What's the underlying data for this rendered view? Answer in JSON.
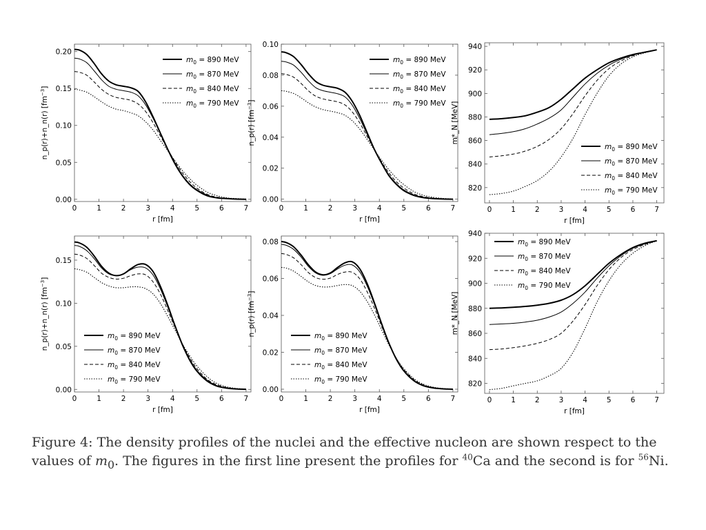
{
  "figure": {
    "caption": {
      "label": "Figure 4:",
      "text_a": "The density profiles of the nuclei and the effective nucleon are shown respect to the values of",
      "m_symbol": "m",
      "m_sub": "0",
      "text_b": ". The figures in the first line present the profiles for",
      "ca_mass": "40",
      "ca_symbol": "Ca",
      "text_c": "and the second is for",
      "ni_mass": "56",
      "ni_symbol": "Ni",
      "text_d": "."
    }
  },
  "chart_data": [
    {
      "type": "line",
      "nucleus": "40Ca",
      "ylabel": "n_p(r)+n_n(r) [fm^-3]",
      "xlabel": "r [fm]",
      "xlim": [
        0,
        7.2
      ],
      "ylim": [
        -0.003,
        0.21
      ],
      "xticks": [
        "0",
        "1",
        "2",
        "3",
        "4",
        "5",
        "6",
        "7"
      ],
      "yticks": [
        "0.00",
        "0.05",
        "0.10",
        "0.15",
        "0.20"
      ],
      "legend_position": "top-right",
      "x": [
        0,
        0.2,
        0.5,
        0.8,
        1.1,
        1.4,
        1.7,
        2.0,
        2.3,
        2.6,
        2.9,
        3.2,
        3.5,
        3.8,
        4.1,
        4.4,
        4.7,
        5.0,
        5.4,
        5.8,
        6.2,
        6.6,
        7.0
      ],
      "series": [
        {
          "name": "m0 = 890 MeV",
          "style": "thick",
          "values": [
            0.203,
            0.202,
            0.196,
            0.184,
            0.17,
            0.16,
            0.155,
            0.153,
            0.151,
            0.146,
            0.132,
            0.112,
            0.09,
            0.068,
            0.048,
            0.032,
            0.02,
            0.012,
            0.005,
            0.002,
            0.001,
            0.0003,
            0.0
          ]
        },
        {
          "name": "m0 = 870 MeV",
          "style": "solid",
          "values": [
            0.191,
            0.19,
            0.185,
            0.174,
            0.162,
            0.153,
            0.149,
            0.147,
            0.145,
            0.14,
            0.128,
            0.11,
            0.089,
            0.068,
            0.049,
            0.033,
            0.021,
            0.013,
            0.006,
            0.002,
            0.001,
            0.0004,
            0.0001
          ]
        },
        {
          "name": "m0 = 840 MeV",
          "style": "dashed",
          "values": [
            0.173,
            0.172,
            0.168,
            0.159,
            0.149,
            0.142,
            0.138,
            0.136,
            0.134,
            0.129,
            0.119,
            0.104,
            0.086,
            0.068,
            0.051,
            0.036,
            0.024,
            0.015,
            0.007,
            0.003,
            0.0015,
            0.0006,
            0.0002
          ]
        },
        {
          "name": "m0 = 790 MeV",
          "style": "dotted",
          "values": [
            0.149,
            0.148,
            0.145,
            0.139,
            0.132,
            0.126,
            0.122,
            0.12,
            0.117,
            0.113,
            0.105,
            0.094,
            0.08,
            0.066,
            0.052,
            0.039,
            0.028,
            0.019,
            0.01,
            0.005,
            0.002,
            0.001,
            0.0003
          ]
        }
      ]
    },
    {
      "type": "line",
      "nucleus": "40Ca",
      "ylabel": "n_p(r) [fm^-3]",
      "xlabel": "r [fm]",
      "xlim": [
        0,
        7.2
      ],
      "ylim": [
        -0.0015,
        0.1
      ],
      "xticks": [
        "0",
        "1",
        "2",
        "3",
        "4",
        "5",
        "6",
        "7"
      ],
      "yticks": [
        "0.00",
        "0.02",
        "0.04",
        "0.06",
        "0.08",
        "0.10"
      ],
      "legend_position": "top-right",
      "x": [
        0,
        0.2,
        0.5,
        0.8,
        1.1,
        1.4,
        1.7,
        2.0,
        2.3,
        2.6,
        2.9,
        3.2,
        3.5,
        3.8,
        4.1,
        4.4,
        4.7,
        5.0,
        5.4,
        5.8,
        6.2,
        6.6,
        7.0
      ],
      "series": [
        {
          "name": "m0 = 890 MeV",
          "style": "thick",
          "values": [
            0.095,
            0.0945,
            0.092,
            0.087,
            0.081,
            0.076,
            0.0735,
            0.0725,
            0.0715,
            0.069,
            0.063,
            0.054,
            0.043,
            0.032,
            0.023,
            0.015,
            0.0095,
            0.0055,
            0.0025,
            0.001,
            0.0004,
            0.0001,
            0.0
          ]
        },
        {
          "name": "m0 = 870 MeV",
          "style": "solid",
          "values": [
            0.089,
            0.0885,
            0.0865,
            0.082,
            0.0765,
            0.072,
            0.07,
            0.069,
            0.068,
            0.066,
            0.0605,
            0.052,
            0.042,
            0.032,
            0.023,
            0.0155,
            0.01,
            0.006,
            0.0028,
            0.0012,
            0.0005,
            0.0002,
            0.0
          ]
        },
        {
          "name": "m0 = 840 MeV",
          "style": "dashed",
          "values": [
            0.081,
            0.0805,
            0.0787,
            0.0748,
            0.07,
            0.0665,
            0.0647,
            0.0637,
            0.0628,
            0.0608,
            0.0562,
            0.0492,
            0.0406,
            0.032,
            0.0238,
            0.0168,
            0.0112,
            0.0072,
            0.0035,
            0.0016,
            0.0007,
            0.0003,
            0.0001
          ]
        },
        {
          "name": "m0 = 790 MeV",
          "style": "dotted",
          "values": [
            0.07,
            0.0696,
            0.0682,
            0.0655,
            0.0622,
            0.0595,
            0.0578,
            0.0568,
            0.0558,
            0.0541,
            0.0505,
            0.0452,
            0.0386,
            0.0317,
            0.0249,
            0.0188,
            0.0136,
            0.0094,
            0.005,
            0.0025,
            0.0012,
            0.0005,
            0.0002
          ]
        }
      ]
    },
    {
      "type": "line",
      "nucleus": "40Ca",
      "ylabel": "m*_N [MeV]",
      "xlabel": "r [fm]",
      "xlim": [
        -0.2,
        7.3
      ],
      "ylim": [
        807,
        943
      ],
      "xticks": [
        "0",
        "1",
        "2",
        "3",
        "4",
        "5",
        "6",
        "7"
      ],
      "yticks": [
        "820",
        "840",
        "860",
        "880",
        "900",
        "920",
        "940"
      ],
      "legend_position": "bottom-right",
      "x": [
        0,
        0.5,
        1.0,
        1.5,
        2.0,
        2.5,
        3.0,
        3.5,
        4.0,
        4.5,
        5.0,
        5.5,
        6.0,
        6.5,
        7.0
      ],
      "series": [
        {
          "name": "m0 = 890 MeV",
          "style": "thick",
          "values": [
            878,
            878.5,
            879.5,
            881,
            884,
            888,
            895,
            904,
            913,
            920,
            926,
            930,
            933,
            935,
            937
          ]
        },
        {
          "name": "m0 = 870 MeV",
          "style": "solid",
          "values": [
            865,
            866,
            867.5,
            870,
            874,
            879,
            886,
            897,
            908,
            917,
            924,
            929,
            932.5,
            935,
            937
          ]
        },
        {
          "name": "m0 = 840 MeV",
          "style": "dashed",
          "values": [
            846,
            847,
            848.5,
            851,
            855,
            861,
            870,
            883,
            898,
            911,
            921,
            927.5,
            932,
            935,
            937
          ]
        },
        {
          "name": "m0 = 790 MeV",
          "style": "dotted",
          "values": [
            814,
            815,
            817,
            821,
            826,
            834,
            846,
            862,
            882,
            900,
            915,
            925,
            931,
            934.5,
            937
          ]
        }
      ]
    },
    {
      "type": "line",
      "nucleus": "56Ni",
      "ylabel": "n_p(r)+n_n(r) [fm^-3]",
      "xlabel": "r [fm]",
      "xlim": [
        0,
        7.2
      ],
      "ylim": [
        -0.003,
        0.178
      ],
      "xticks": [
        "0",
        "1",
        "2",
        "3",
        "4",
        "5",
        "6",
        "7"
      ],
      "yticks": [
        "0.00",
        "0.05",
        "0.10",
        "0.15"
      ],
      "legend_position": "bottom-left",
      "x": [
        0,
        0.2,
        0.5,
        0.8,
        1.1,
        1.4,
        1.7,
        2.0,
        2.3,
        2.6,
        2.9,
        3.2,
        3.5,
        3.8,
        4.1,
        4.4,
        4.7,
        5.0,
        5.4,
        5.8,
        6.2,
        6.6,
        7.0
      ],
      "series": [
        {
          "name": "m0 = 890 MeV",
          "style": "thick",
          "values": [
            0.171,
            0.17,
            0.165,
            0.155,
            0.143,
            0.135,
            0.132,
            0.134,
            0.14,
            0.145,
            0.145,
            0.137,
            0.12,
            0.098,
            0.074,
            0.052,
            0.034,
            0.021,
            0.01,
            0.004,
            0.0015,
            0.0005,
            0.0001
          ]
        },
        {
          "name": "m0 = 870 MeV",
          "style": "solid",
          "values": [
            0.167,
            0.166,
            0.161,
            0.152,
            0.141,
            0.134,
            0.132,
            0.134,
            0.139,
            0.142,
            0.141,
            0.133,
            0.117,
            0.096,
            0.073,
            0.052,
            0.035,
            0.022,
            0.011,
            0.0045,
            0.0018,
            0.0006,
            0.0002
          ]
        },
        {
          "name": "m0 = 840 MeV",
          "style": "dashed",
          "values": [
            0.157,
            0.156,
            0.152,
            0.144,
            0.135,
            0.13,
            0.128,
            0.129,
            0.132,
            0.134,
            0.133,
            0.125,
            0.111,
            0.092,
            0.072,
            0.053,
            0.037,
            0.024,
            0.012,
            0.0055,
            0.0023,
            0.0008,
            0.0003
          ]
        },
        {
          "name": "m0 = 790 MeV",
          "style": "dotted",
          "values": [
            0.14,
            0.139,
            0.136,
            0.13,
            0.124,
            0.12,
            0.118,
            0.118,
            0.119,
            0.119,
            0.117,
            0.111,
            0.1,
            0.085,
            0.069,
            0.053,
            0.039,
            0.027,
            0.015,
            0.007,
            0.003,
            0.0012,
            0.0004
          ]
        }
      ]
    },
    {
      "type": "line",
      "nucleus": "56Ni",
      "ylabel": "n_p(r) [fm^-3]",
      "xlabel": "r [fm]",
      "xlim": [
        0,
        7.2
      ],
      "ylim": [
        -0.0015,
        0.083
      ],
      "xticks": [
        "0",
        "1",
        "2",
        "3",
        "4",
        "5",
        "6",
        "7"
      ],
      "yticks": [
        "0.00",
        "0.02",
        "0.04",
        "0.06",
        "0.08"
      ],
      "legend_position": "bottom-left",
      "x": [
        0,
        0.2,
        0.5,
        0.8,
        1.1,
        1.4,
        1.7,
        2.0,
        2.3,
        2.6,
        2.9,
        3.2,
        3.5,
        3.8,
        4.1,
        4.4,
        4.7,
        5.0,
        5.4,
        5.8,
        6.2,
        6.6,
        7.0
      ],
      "series": [
        {
          "name": "m0 = 890 MeV",
          "style": "thick",
          "values": [
            0.08,
            0.0795,
            0.0772,
            0.0728,
            0.0675,
            0.0635,
            0.062,
            0.063,
            0.066,
            0.0685,
            0.069,
            0.0652,
            0.0573,
            0.0467,
            0.0352,
            0.0247,
            0.0161,
            0.0099,
            0.0047,
            0.0019,
            0.0007,
            0.0002,
            0.0
          ]
        },
        {
          "name": "m0 = 870 MeV",
          "style": "solid",
          "values": [
            0.0785,
            0.078,
            0.0758,
            0.0717,
            0.0666,
            0.063,
            0.0617,
            0.0626,
            0.0652,
            0.0672,
            0.0673,
            0.0636,
            0.056,
            0.0459,
            0.0348,
            0.0246,
            0.0162,
            0.0101,
            0.0049,
            0.002,
            0.0008,
            0.0003,
            0.0001
          ]
        },
        {
          "name": "m0 = 840 MeV",
          "style": "dashed",
          "values": [
            0.0735,
            0.073,
            0.0712,
            0.0676,
            0.0633,
            0.0605,
            0.0596,
            0.0602,
            0.0622,
            0.0635,
            0.0633,
            0.0598,
            0.0529,
            0.0439,
            0.0339,
            0.0244,
            0.0165,
            0.0106,
            0.0053,
            0.0023,
            0.0009,
            0.0003,
            0.0001
          ]
        },
        {
          "name": "m0 = 790 MeV",
          "style": "dotted",
          "values": [
            0.066,
            0.0656,
            0.064,
            0.0612,
            0.0582,
            0.0562,
            0.0554,
            0.0555,
            0.0562,
            0.0567,
            0.0561,
            0.0531,
            0.0476,
            0.0403,
            0.032,
            0.0238,
            0.0167,
            0.0111,
            0.0058,
            0.0027,
            0.0011,
            0.0004,
            0.0001
          ]
        }
      ]
    },
    {
      "type": "line",
      "nucleus": "56Ni",
      "ylabel": "m*_N [MeV]",
      "xlabel": "r [fm]",
      "xlim": [
        -0.2,
        7.3
      ],
      "ylim": [
        812,
        940
      ],
      "xticks": [
        "0",
        "1",
        "2",
        "3",
        "4",
        "5",
        "6",
        "7"
      ],
      "yticks": [
        "820",
        "840",
        "860",
        "880",
        "900",
        "920",
        "940"
      ],
      "legend_position": "top-left",
      "x": [
        0,
        0.5,
        1.0,
        1.5,
        2.0,
        2.5,
        3.0,
        3.5,
        4.0,
        4.5,
        5.0,
        5.5,
        6.0,
        6.5,
        7.0
      ],
      "series": [
        {
          "name": "m0 = 890 MeV",
          "style": "thick",
          "values": [
            880,
            880.3,
            880.8,
            881.5,
            882.5,
            884,
            886.5,
            891,
            898,
            907,
            916,
            923,
            928.5,
            932,
            934
          ]
        },
        {
          "name": "m0 = 870 MeV",
          "style": "solid",
          "values": [
            867,
            867.5,
            868,
            869,
            870.5,
            873,
            877,
            884,
            893,
            904,
            914,
            922,
            928,
            931.5,
            934
          ]
        },
        {
          "name": "m0 = 840 MeV",
          "style": "dashed",
          "values": [
            847,
            847.5,
            848.5,
            850,
            852,
            855,
            860,
            870,
            883,
            898,
            911,
            920.5,
            927,
            931,
            934
          ]
        },
        {
          "name": "m0 = 790 MeV",
          "style": "dotted",
          "values": [
            815,
            816,
            818,
            820,
            822,
            826,
            832,
            845,
            864,
            885,
            902,
            915,
            924,
            930,
            934
          ]
        }
      ]
    }
  ]
}
